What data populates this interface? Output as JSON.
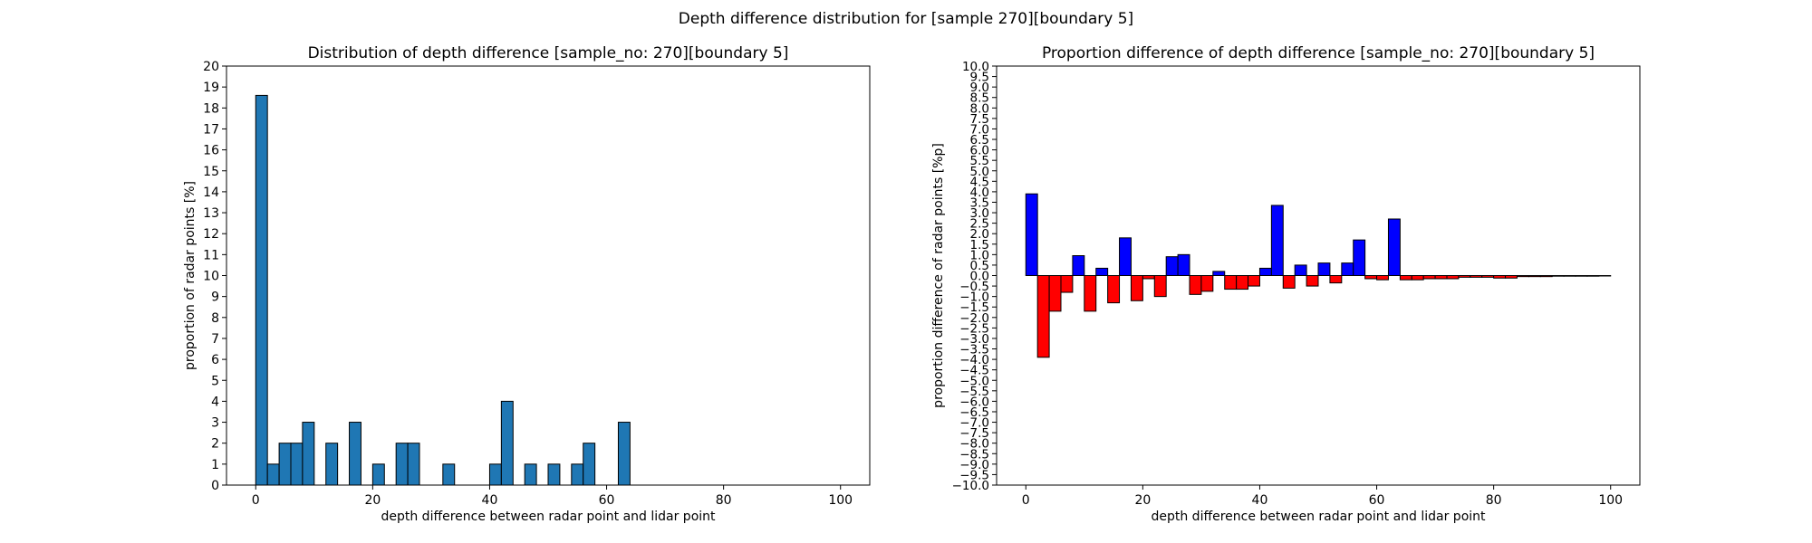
{
  "figure": {
    "suptitle": "Depth difference distribution for [sample 270][boundary 5]"
  },
  "chart_data": [
    {
      "type": "bar",
      "title": "Distribution of depth difference [sample_no: 270][boundary 5]",
      "xlabel": "depth difference between radar point and lidar point",
      "ylabel": "proportion of radar points [%]",
      "xlim": [
        -5,
        105
      ],
      "ylim": [
        0,
        20
      ],
      "xticks": [
        0,
        20,
        40,
        60,
        80,
        100
      ],
      "yticks": [
        0,
        1,
        2,
        3,
        4,
        5,
        6,
        7,
        8,
        9,
        10,
        11,
        12,
        13,
        14,
        15,
        16,
        17,
        18,
        19,
        20
      ],
      "bin_width": 2,
      "bar_color": "#1f77b4",
      "edge_color": "#000000",
      "x": [
        1,
        3,
        5,
        7,
        9,
        13,
        17,
        21,
        25,
        27,
        33,
        41,
        43,
        47,
        51,
        55,
        57,
        63
      ],
      "values": [
        18.6,
        1,
        2,
        2,
        3,
        2,
        3,
        1,
        2,
        2,
        1,
        1,
        4,
        1,
        1,
        1,
        2,
        3
      ]
    },
    {
      "type": "bar",
      "title": "Proportion difference of depth difference [sample_no: 270][boundary 5]",
      "xlabel": "depth difference between radar point and lidar point",
      "ylabel": "proportion difference of radar points [%p]",
      "xlim": [
        -5,
        105
      ],
      "ylim": [
        -10,
        10
      ],
      "xticks": [
        0,
        20,
        40,
        60,
        80,
        100
      ],
      "ytick_step": 0.5,
      "bin_width": 2,
      "positive_color": "#0000ff",
      "negative_color": "#ff0000",
      "edge_color": "#000000",
      "x": [
        1,
        3,
        5,
        7,
        9,
        11,
        13,
        15,
        17,
        19,
        21,
        23,
        25,
        27,
        29,
        31,
        33,
        35,
        37,
        39,
        41,
        43,
        45,
        47,
        49,
        51,
        53,
        55,
        57,
        59,
        61,
        63,
        65,
        67,
        69,
        71,
        73,
        75,
        77,
        79,
        81,
        83,
        85,
        87,
        89,
        91,
        93,
        95,
        97,
        99
      ],
      "values": [
        3.9,
        -3.9,
        -1.7,
        -0.8,
        0.95,
        -1.7,
        0.35,
        -1.3,
        1.8,
        -1.2,
        -0.15,
        -1.0,
        0.9,
        1.0,
        -0.9,
        -0.75,
        0.2,
        -0.65,
        -0.65,
        -0.5,
        0.35,
        3.35,
        -0.6,
        0.5,
        -0.5,
        0.6,
        -0.35,
        0.6,
        1.7,
        -0.15,
        -0.2,
        2.7,
        -0.2,
        -0.2,
        -0.15,
        -0.15,
        -0.15,
        -0.08,
        -0.08,
        -0.08,
        -0.12,
        -0.12,
        -0.05,
        -0.05,
        -0.05,
        -0.03,
        -0.03,
        -0.03,
        -0.03,
        -0.02
      ]
    }
  ]
}
